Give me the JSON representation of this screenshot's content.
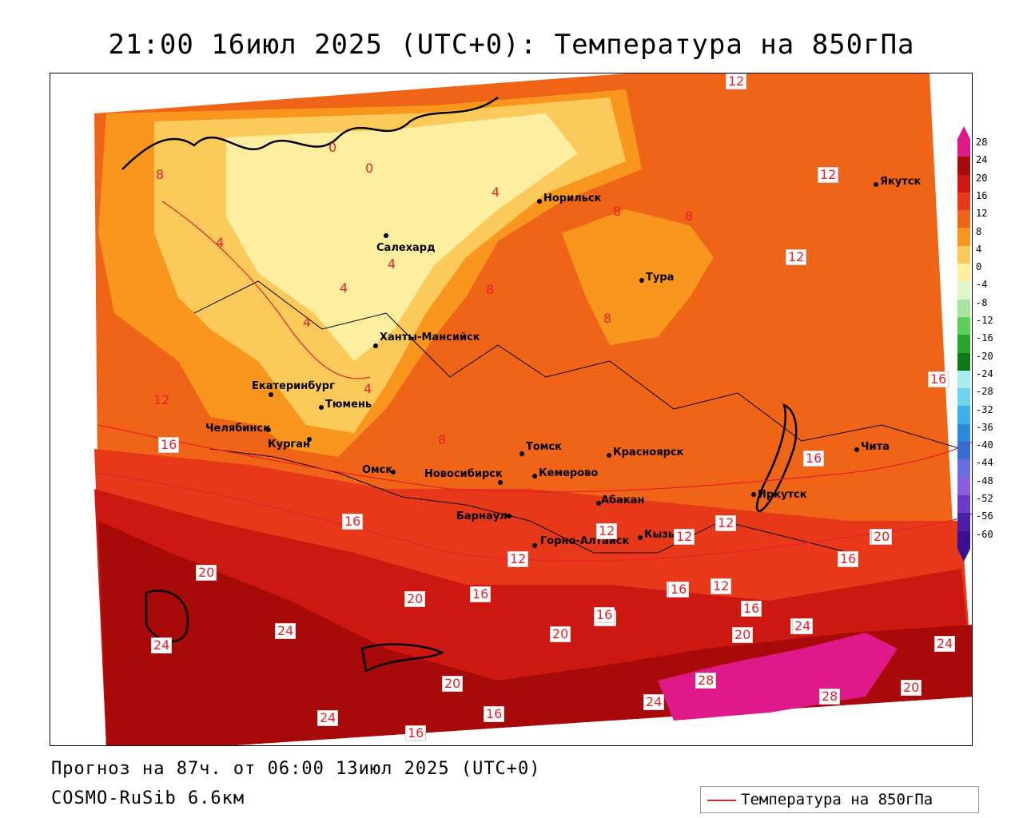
{
  "title": "21:00 16июл 2025 (UTC+0): Температура на 850гПа",
  "footer": {
    "forecast": "Прогноз на 87ч. от 06:00 13июл 2025 (UTC+0)",
    "model": "COSMO-RuSib 6.6км"
  },
  "legend": {
    "label": "Температура на 850гПа",
    "color": "#e8202a"
  },
  "cities": [
    {
      "name": "Якутск"
    },
    {
      "name": "Норильск"
    },
    {
      "name": "Салехард"
    },
    {
      "name": "Тура"
    },
    {
      "name": "Ханты-Мансийск"
    },
    {
      "name": "Екатеринбург"
    },
    {
      "name": "Тюмень"
    },
    {
      "name": "Челябинск"
    },
    {
      "name": "Курган"
    },
    {
      "name": "Омск"
    },
    {
      "name": "Томск"
    },
    {
      "name": "Красноярск"
    },
    {
      "name": "Новосибирск"
    },
    {
      "name": "Кемерово"
    },
    {
      "name": "Абакан"
    },
    {
      "name": "Барнаул"
    },
    {
      "name": "Горно-Алтайск"
    },
    {
      "name": "Кызыл"
    },
    {
      "name": "Иркутск"
    },
    {
      "name": "Чита"
    }
  ],
  "isolines": [
    "12",
    "12",
    "12",
    "8",
    "8",
    "8",
    "4",
    "4",
    "4",
    "4",
    "4",
    "4",
    "0",
    "0",
    "8",
    "8",
    "8",
    "12",
    "16",
    "16",
    "16",
    "20",
    "20",
    "24",
    "24",
    "24",
    "16",
    "20",
    "16",
    "20",
    "16",
    "12",
    "12",
    "16",
    "16",
    "16",
    "16",
    "20",
    "20",
    "24",
    "24",
    "28",
    "28",
    "24",
    "20",
    "16",
    "16",
    "12",
    "12",
    "12",
    "16",
    "20",
    "24",
    "16"
  ],
  "colorbar": {
    "labels": [
      "28",
      "24",
      "20",
      "16",
      "12",
      "8",
      "4",
      "0",
      "-4",
      "-8",
      "-12",
      "-16",
      "-20",
      "-24",
      "-28",
      "-32",
      "-36",
      "-40",
      "-44",
      "-48",
      "-52",
      "-56",
      "-60"
    ],
    "colors": [
      "#e0198a",
      "#a80a0a",
      "#cc1810",
      "#e8381a",
      "#f06418",
      "#f8961e",
      "#fcca5a",
      "#fdeea0",
      "#e0f7c8",
      "#a8e6a0",
      "#5ccf5a",
      "#28a428",
      "#0a7a14",
      "#a8ecf0",
      "#70d4ec",
      "#3cb0e8",
      "#2e8ad8",
      "#3a6ad4",
      "#6a6ee0",
      "#8a5edc",
      "#6a3ac8",
      "#4a20a8",
      "#3a1090"
    ]
  }
}
